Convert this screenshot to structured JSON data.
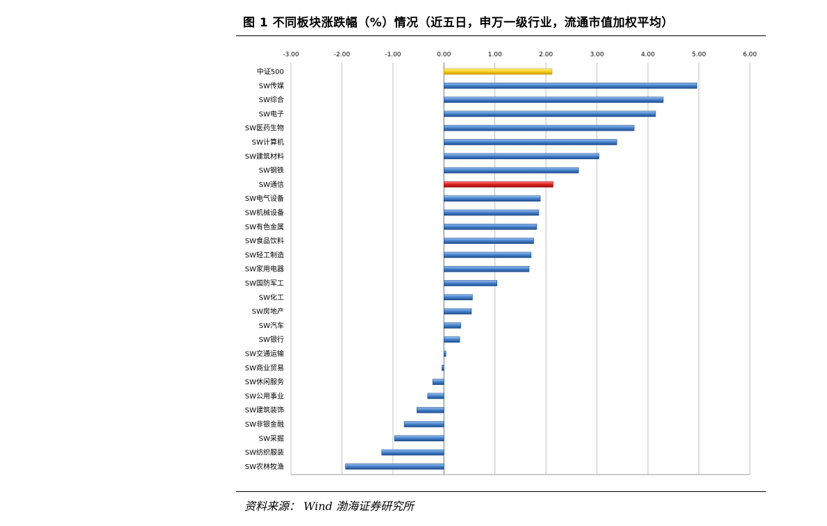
{
  "header": {
    "title": "图 1 不同板块涨跌幅（%）情况（近五日，申万一级行业，流通市值加权平均）"
  },
  "footer": {
    "source": "资料来源： Wind 渤海证券研究所"
  },
  "chart_data": {
    "type": "bar",
    "orientation": "horizontal",
    "title": "",
    "xlabel": "",
    "ylabel": "",
    "xlim": [
      -3,
      6
    ],
    "grid": true,
    "ticks": [
      "-3.00",
      "-2.00",
      "-1.00",
      "0.00",
      "1.00",
      "2.00",
      "3.00",
      "4.00",
      "5.00",
      "6.00"
    ],
    "tick_values": [
      -3,
      -2,
      -1,
      0,
      1,
      2,
      3,
      4,
      5,
      6
    ],
    "categories": [
      "中证500",
      "SW传媒",
      "SW综合",
      "SW电子",
      "SW医药生物",
      "SW计算机",
      "SW建筑材料",
      "SW钢铁",
      "SW通信",
      "SW电气设备",
      "SW机械设备",
      "SW有色金属",
      "SW食品饮料",
      "SW轻工制造",
      "SW家用电器",
      "SW国防军工",
      "SW化工",
      "SW房地产",
      "SW汽车",
      "SW银行",
      "SW交通运输",
      "SW商业贸易",
      "SW休闲服务",
      "SW公用事业",
      "SW建筑装饰",
      "SW非银金融",
      "SW采掘",
      "SW纺织服装",
      "SW农林牧渔"
    ],
    "values": [
      2.12,
      4.96,
      4.3,
      4.15,
      3.73,
      3.39,
      3.04,
      2.64,
      2.14,
      1.89,
      1.86,
      1.82,
      1.76,
      1.71,
      1.67,
      1.04,
      0.56,
      0.54,
      0.33,
      0.31,
      0.04,
      -0.04,
      -0.22,
      -0.32,
      -0.53,
      -0.78,
      -0.97,
      -1.22,
      -1.93
    ],
    "colors": {
      "default": "#4a86d0",
      "default_light": "#9fc4ee",
      "default_dark": "#1f4e8c",
      "benchmark": "#ffd21e",
      "benchmark_light": "#fff3a0",
      "benchmark_dark": "#c89a00",
      "highlight": "#e32222",
      "highlight_light": "#ff8a8a",
      "highlight_dark": "#9a0d0d",
      "grid": "#bfbfbf"
    },
    "highlight": {
      "中证500": "benchmark",
      "SW通信": "highlight"
    }
  }
}
